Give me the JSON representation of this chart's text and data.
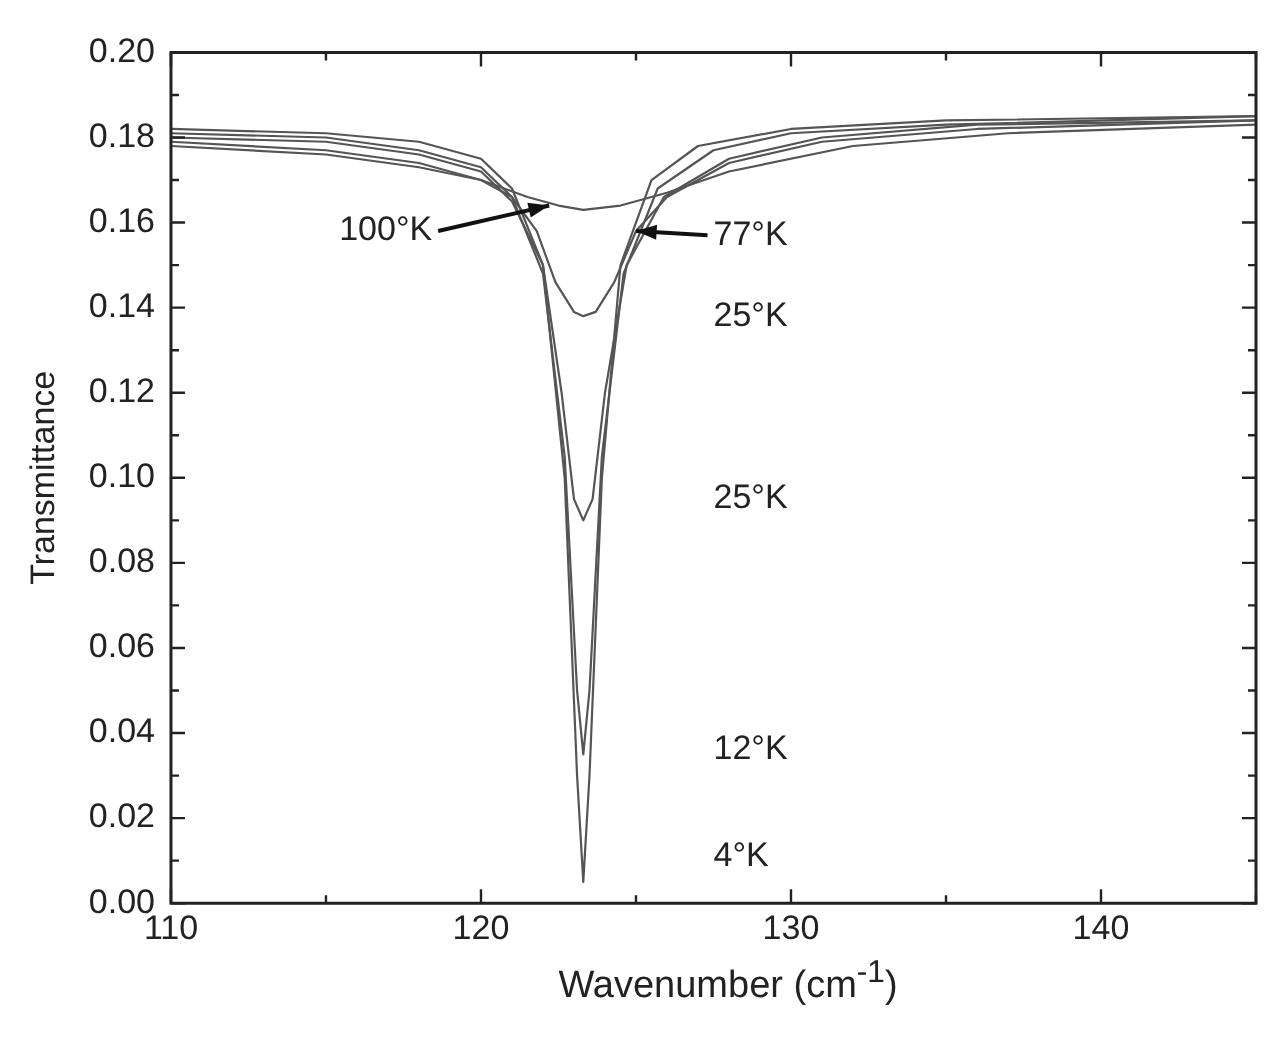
{
  "chart_data": {
    "type": "line",
    "xlabel": "Wavenumber (cm$^{-1}$)",
    "ylabel": "Transmittance",
    "xlim": [
      110,
      145
    ],
    "xticks": [
      110,
      120,
      130,
      140
    ],
    "ylim": [
      0,
      0.2
    ],
    "yticks": [
      {
        "value": 0,
        "label": "0.00"
      },
      {
        "value": 0.02,
        "label": "0.02"
      },
      {
        "value": 0.04,
        "label": "0.04"
      },
      {
        "value": 0.06,
        "label": "0.06"
      },
      {
        "value": 0.08,
        "label": "0.08"
      },
      {
        "value": 0.1,
        "label": "0.10"
      },
      {
        "value": 0.12,
        "label": "0.12"
      },
      {
        "value": 0.14,
        "label": "0.14"
      },
      {
        "value": 0.16,
        "label": "0.16"
      },
      {
        "value": 0.18,
        "label": "0.18"
      },
      {
        "value": 0.2,
        "label": "0.20"
      }
    ],
    "grid": false,
    "legend": false,
    "marker": "none",
    "line_style": "solid",
    "series": [
      {
        "color": "#555555",
        "x": [
          110,
          115,
          118,
          120,
          121,
          122,
          122.7,
          123.1,
          123.3,
          123.5,
          123.9,
          124.5,
          125.5,
          127,
          130,
          135,
          145
        ],
        "values": [
          0.182,
          0.181,
          0.179,
          0.175,
          0.168,
          0.15,
          0.1,
          0.03,
          0.005,
          0.03,
          0.1,
          0.15,
          0.17,
          0.178,
          0.182,
          0.184,
          0.185
        ]
      },
      {
        "color": "#555555",
        "x": [
          110,
          115,
          118,
          120,
          121,
          122,
          122.7,
          123.1,
          123.3,
          123.5,
          123.9,
          124.6,
          125.7,
          127.5,
          130,
          135,
          145
        ],
        "values": [
          0.181,
          0.18,
          0.177,
          0.173,
          0.166,
          0.148,
          0.105,
          0.05,
          0.035,
          0.05,
          0.105,
          0.148,
          0.168,
          0.177,
          0.181,
          0.183,
          0.185
        ]
      },
      {
        "color": "#555555",
        "x": [
          110,
          115,
          118,
          120,
          121,
          122,
          122.6,
          123,
          123.3,
          123.6,
          124,
          124.7,
          125.9,
          128,
          131,
          136,
          145
        ],
        "values": [
          0.18,
          0.179,
          0.176,
          0.172,
          0.165,
          0.15,
          0.12,
          0.095,
          0.09,
          0.095,
          0.12,
          0.15,
          0.166,
          0.175,
          0.18,
          0.183,
          0.184
        ]
      },
      {
        "color": "#555555",
        "x": [
          110,
          115,
          118,
          120,
          121,
          121.8,
          122.4,
          123,
          123.3,
          123.7,
          124.3,
          125,
          126,
          128,
          131,
          136,
          145
        ],
        "values": [
          0.179,
          0.177,
          0.174,
          0.17,
          0.166,
          0.158,
          0.146,
          0.139,
          0.138,
          0.139,
          0.146,
          0.158,
          0.166,
          0.174,
          0.179,
          0.182,
          0.184
        ]
      },
      {
        "color": "#555555",
        "x": [
          110,
          115,
          118,
          120,
          121.5,
          122.5,
          123.3,
          124.5,
          126,
          128,
          132,
          137,
          145
        ],
        "values": [
          0.178,
          0.176,
          0.173,
          0.17,
          0.166,
          0.164,
          0.163,
          0.164,
          0.167,
          0.172,
          0.178,
          0.181,
          0.183
        ]
      }
    ],
    "annotations": [
      {
        "text": "100°K",
        "x": 122.2,
        "y": 0.164
      },
      {
        "text": "77°K",
        "x": 125,
        "y": 0.158
      },
      "25°K",
      "25°K",
      "12°K",
      "4°K"
    ]
  }
}
